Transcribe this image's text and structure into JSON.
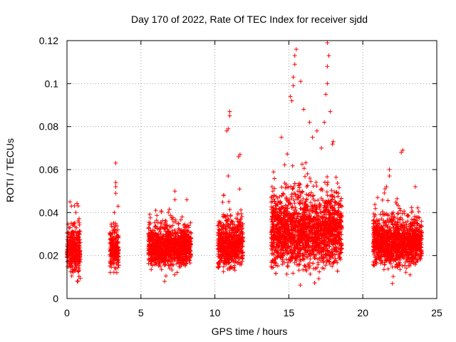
{
  "chart_data": {
    "type": "scatter",
    "title": "Day 170 of 2022, Rate Of TEC Index for receiver sjdd",
    "xlabel": "GPS time / hours",
    "ylabel": "ROTI / TECUs",
    "xlim": [
      0,
      25
    ],
    "ylim": [
      0,
      0.12
    ],
    "xticks": [
      0,
      5,
      10,
      15,
      20,
      25
    ],
    "xtick_labels": [
      "0",
      "5",
      "10",
      "15",
      "20",
      "25"
    ],
    "yticks": [
      0,
      0.02,
      0.04,
      0.06,
      0.08,
      0.1,
      0.12
    ],
    "ytick_labels": [
      "0",
      "0.02",
      "0.04",
      "0.06",
      "0.08",
      "0.1",
      "0.12"
    ],
    "grid": true,
    "marker": "+",
    "color": "#ff0000",
    "series": [
      {
        "name": "ROTI",
        "clusters": [
          {
            "x": [
              0.0,
              0.9
            ],
            "y_mean": 0.022,
            "y_spread": 0.007,
            "density": 6,
            "outliers": [
              [
                0.2,
                0.045
              ],
              [
                0.3,
                0.043
              ],
              [
                0.6,
                0.04
              ],
              [
                0.7,
                0.008
              ]
            ]
          },
          {
            "x": [
              2.9,
              3.5
            ],
            "y_mean": 0.023,
            "y_spread": 0.006,
            "density": 6,
            "outliers": [
              [
                3.3,
                0.063
              ],
              [
                3.3,
                0.054
              ],
              [
                3.3,
                0.052
              ],
              [
                3.3,
                0.049
              ],
              [
                3.2,
                0.04
              ]
            ]
          },
          {
            "x": [
              5.5,
              8.4
            ],
            "y_mean": 0.024,
            "y_spread": 0.006,
            "density": 6,
            "outliers": [
              [
                7.3,
                0.05
              ],
              [
                7.3,
                0.046
              ],
              [
                8.1,
                0.046
              ],
              [
                6.6,
                0.008
              ],
              [
                6.0,
                0.041
              ]
            ]
          },
          {
            "x": [
              10.2,
              11.9
            ],
            "y_mean": 0.025,
            "y_spread": 0.007,
            "density": 6,
            "outliers": [
              [
                10.8,
                0.078
              ],
              [
                10.9,
                0.079
              ],
              [
                11.0,
                0.087
              ],
              [
                11.0,
                0.085
              ],
              [
                10.9,
                0.057
              ],
              [
                11.6,
                0.066
              ],
              [
                11.7,
                0.067
              ],
              [
                10.6,
                0.048
              ]
            ]
          },
          {
            "x": [
              13.8,
              18.6
            ],
            "y_mean": 0.031,
            "y_spread": 0.011,
            "density": 7,
            "outliers": [
              [
                15.5,
                0.116
              ],
              [
                15.4,
                0.113
              ],
              [
                15.4,
                0.109
              ],
              [
                15.3,
                0.103
              ],
              [
                15.3,
                0.099
              ],
              [
                15.1,
                0.094
              ],
              [
                15.2,
                0.092
              ],
              [
                15.8,
                0.101
              ],
              [
                16.0,
                0.088
              ],
              [
                17.6,
                0.119
              ],
              [
                17.7,
                0.113
              ],
              [
                17.6,
                0.108
              ],
              [
                17.6,
                0.1
              ],
              [
                17.5,
                0.095
              ],
              [
                17.8,
                0.087
              ],
              [
                17.4,
                0.082
              ],
              [
                16.4,
                0.082
              ],
              [
                16.6,
                0.075
              ],
              [
                14.5,
                0.075
              ],
              [
                16.9,
                0.078
              ],
              [
                17.2,
                0.07
              ],
              [
                18.0,
                0.073
              ]
            ]
          },
          {
            "x": [
              20.7,
              24.0
            ],
            "y_mean": 0.026,
            "y_spread": 0.007,
            "density": 6,
            "outliers": [
              [
                22.6,
                0.068
              ],
              [
                22.7,
                0.069
              ],
              [
                21.8,
                0.06
              ],
              [
                21.8,
                0.057
              ],
              [
                21.6,
                0.052
              ],
              [
                21.5,
                0.051
              ],
              [
                21.0,
                0.047
              ],
              [
                22.3,
                0.044
              ],
              [
                22.0,
                0.007
              ],
              [
                23.2,
                0.011
              ]
            ]
          }
        ]
      }
    ]
  }
}
